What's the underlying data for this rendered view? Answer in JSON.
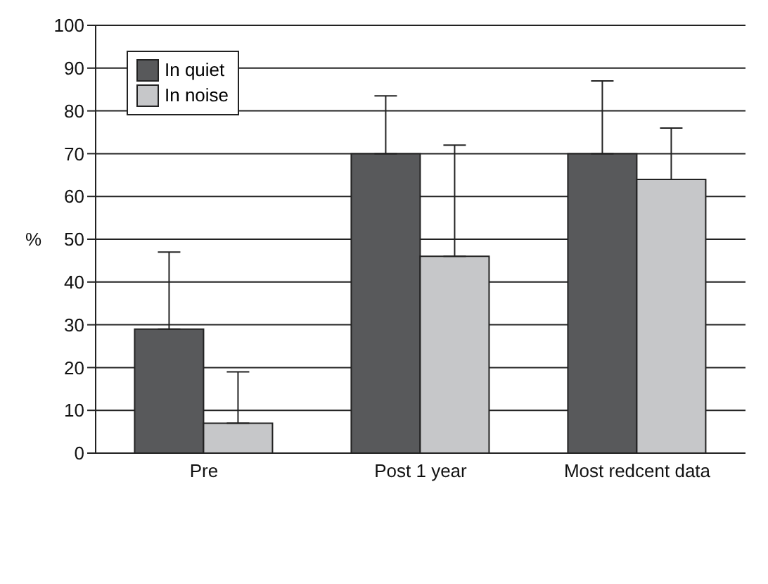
{
  "chart_data": {
    "type": "bar",
    "ylabel": "%",
    "categories": [
      "Pre",
      "Post 1 year",
      "Most redcent data"
    ],
    "series": [
      {
        "name": "In quiet",
        "color": "#58595b",
        "values": [
          29,
          70,
          70
        ],
        "errors": [
          [
            29,
            47
          ],
          [
            70,
            83.5
          ],
          [
            70,
            87
          ]
        ]
      },
      {
        "name": "In noise",
        "color": "#c6c7c9",
        "values": [
          7,
          46,
          64
        ],
        "errors": [
          [
            7,
            19
          ],
          [
            46,
            72
          ],
          [
            64,
            76
          ]
        ]
      }
    ],
    "ylim": [
      0,
      100
    ],
    "yticks": [
      0,
      10,
      20,
      30,
      40,
      50,
      60,
      70,
      80,
      90,
      100
    ],
    "grid": "y",
    "legend": "top left"
  }
}
